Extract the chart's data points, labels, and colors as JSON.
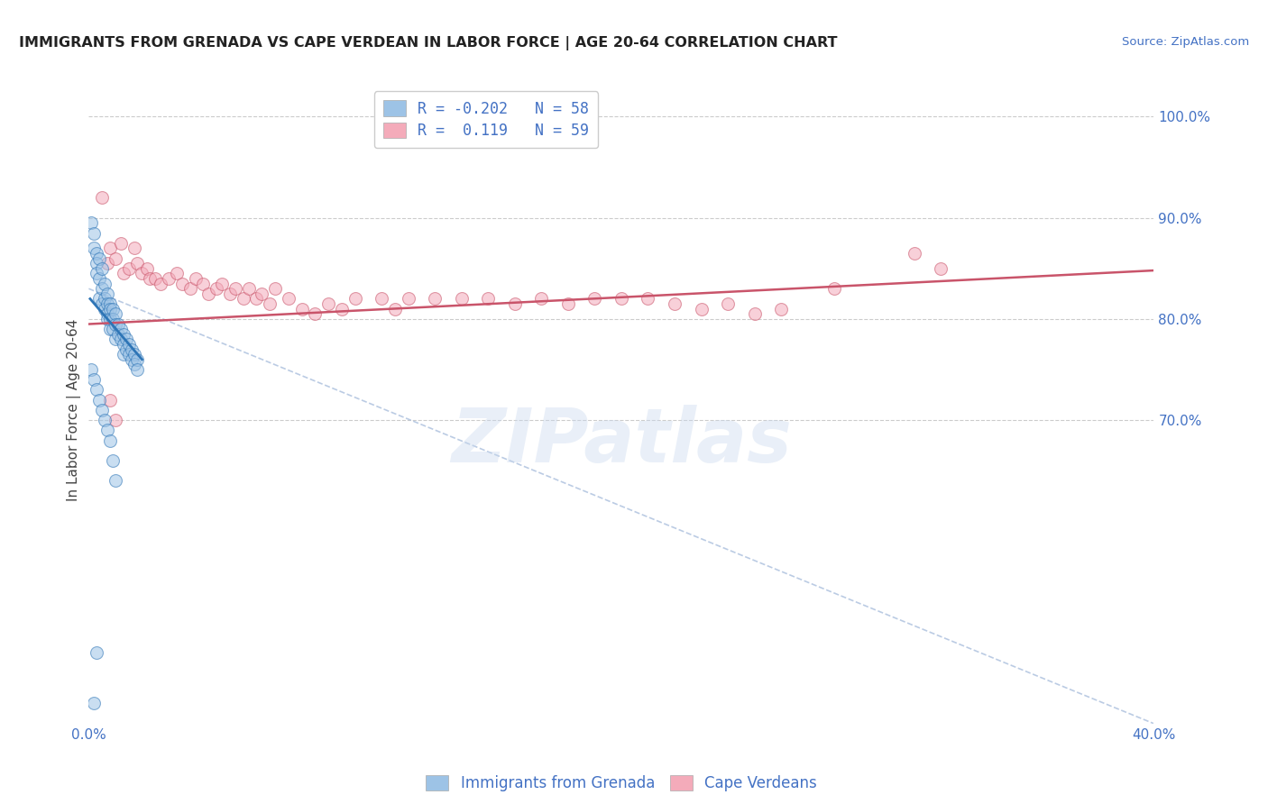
{
  "title": "IMMIGRANTS FROM GRENADA VS CAPE VERDEAN IN LABOR FORCE | AGE 20-64 CORRELATION CHART",
  "source": "Source: ZipAtlas.com",
  "ylabel": "In Labor Force | Age 20-64",
  "xlim": [
    0.0,
    0.4
  ],
  "ylim": [
    0.4,
    1.02
  ],
  "xticks": [
    0.0,
    0.4
  ],
  "yticks": [
    0.7,
    0.8,
    0.9,
    1.0
  ],
  "grid_yticks": [
    0.7,
    0.8,
    0.9,
    1.0
  ],
  "color_blue": "#9DC3E6",
  "color_pink": "#F4ABBA",
  "color_blue_dark": "#2E75B6",
  "color_pink_dark": "#C9546A",
  "color_blue_text": "#4472C4",
  "grenada_R": -0.202,
  "grenada_N": 58,
  "cape_verde_R": 0.119,
  "cape_verde_N": 59,
  "watermark": "ZIPatlas",
  "scatter_alpha": 0.55,
  "scatter_size": 100,
  "grenada_scatter_x": [
    0.001,
    0.002,
    0.002,
    0.003,
    0.003,
    0.003,
    0.004,
    0.004,
    0.004,
    0.005,
    0.005,
    0.005,
    0.006,
    0.006,
    0.006,
    0.007,
    0.007,
    0.007,
    0.007,
    0.008,
    0.008,
    0.008,
    0.008,
    0.009,
    0.009,
    0.009,
    0.01,
    0.01,
    0.01,
    0.011,
    0.011,
    0.012,
    0.012,
    0.013,
    0.013,
    0.013,
    0.014,
    0.014,
    0.015,
    0.015,
    0.016,
    0.016,
    0.017,
    0.017,
    0.018,
    0.018,
    0.001,
    0.002,
    0.003,
    0.004,
    0.005,
    0.006,
    0.007,
    0.008,
    0.009,
    0.01,
    0.002,
    0.003
  ],
  "grenada_scatter_y": [
    0.895,
    0.885,
    0.87,
    0.865,
    0.855,
    0.845,
    0.86,
    0.84,
    0.82,
    0.85,
    0.83,
    0.815,
    0.835,
    0.82,
    0.81,
    0.825,
    0.815,
    0.805,
    0.8,
    0.815,
    0.81,
    0.8,
    0.79,
    0.81,
    0.8,
    0.79,
    0.805,
    0.795,
    0.78,
    0.795,
    0.785,
    0.79,
    0.78,
    0.785,
    0.775,
    0.765,
    0.78,
    0.77,
    0.775,
    0.765,
    0.77,
    0.76,
    0.765,
    0.755,
    0.76,
    0.75,
    0.75,
    0.74,
    0.73,
    0.72,
    0.71,
    0.7,
    0.69,
    0.68,
    0.66,
    0.64,
    0.42,
    0.47
  ],
  "cape_verde_scatter_x": [
    0.005,
    0.007,
    0.008,
    0.01,
    0.012,
    0.013,
    0.015,
    0.017,
    0.018,
    0.02,
    0.022,
    0.023,
    0.025,
    0.027,
    0.03,
    0.033,
    0.035,
    0.038,
    0.04,
    0.043,
    0.045,
    0.048,
    0.05,
    0.053,
    0.055,
    0.058,
    0.06,
    0.063,
    0.065,
    0.068,
    0.07,
    0.075,
    0.08,
    0.085,
    0.09,
    0.095,
    0.1,
    0.11,
    0.115,
    0.12,
    0.13,
    0.14,
    0.15,
    0.16,
    0.17,
    0.18,
    0.19,
    0.2,
    0.21,
    0.22,
    0.23,
    0.24,
    0.25,
    0.26,
    0.28,
    0.31,
    0.32,
    0.008,
    0.01
  ],
  "cape_verde_scatter_y": [
    0.92,
    0.855,
    0.87,
    0.86,
    0.875,
    0.845,
    0.85,
    0.87,
    0.855,
    0.845,
    0.85,
    0.84,
    0.84,
    0.835,
    0.84,
    0.845,
    0.835,
    0.83,
    0.84,
    0.835,
    0.825,
    0.83,
    0.835,
    0.825,
    0.83,
    0.82,
    0.83,
    0.82,
    0.825,
    0.815,
    0.83,
    0.82,
    0.81,
    0.805,
    0.815,
    0.81,
    0.82,
    0.82,
    0.81,
    0.82,
    0.82,
    0.82,
    0.82,
    0.815,
    0.82,
    0.815,
    0.82,
    0.82,
    0.82,
    0.815,
    0.81,
    0.815,
    0.805,
    0.81,
    0.83,
    0.865,
    0.85,
    0.72,
    0.7
  ],
  "grenada_trend_x": [
    0.0005,
    0.02
  ],
  "grenada_trend_y": [
    0.82,
    0.76
  ],
  "cape_verde_trend_x": [
    0.0,
    0.4
  ],
  "cape_verde_trend_y": [
    0.795,
    0.848
  ],
  "dashed_trend_x": [
    0.0,
    0.4
  ],
  "dashed_trend_y": [
    0.83,
    0.4
  ],
  "background_color": "#ffffff",
  "grid_color": "#cccccc",
  "title_fontsize": 11.5,
  "axis_label_fontsize": 11,
  "tick_fontsize": 11,
  "legend_fontsize": 12
}
